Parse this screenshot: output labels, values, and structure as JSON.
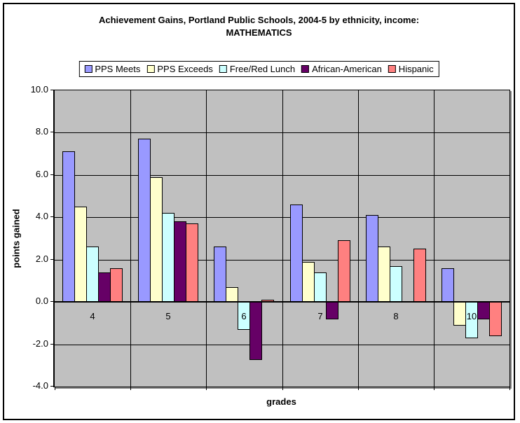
{
  "title": {
    "line1": "Achievement Gains, Portland Public Schools, 2004-5 by ethnicity, income:",
    "line2": "MATHEMATICS"
  },
  "chart_data": {
    "type": "bar",
    "title": "Achievement Gains, Portland Public Schools, 2004-5 by ethnicity, income: MATHEMATICS",
    "xlabel": "grades",
    "ylabel": "points gained",
    "ylim": [
      -4.0,
      10.0
    ],
    "ytick_values": [
      10,
      8,
      6,
      4,
      2,
      0,
      -2,
      -4
    ],
    "ytick_labels": [
      "10.0",
      "8.0",
      "6.0",
      "4.0",
      "2.0",
      "0.0",
      "-2.0",
      "-4.0"
    ],
    "grid": true,
    "plot_background": "#C0C0C0",
    "gridline_color": "#000000",
    "legend_position": "top-center",
    "categories": [
      "4",
      "5",
      "6",
      "7",
      "8",
      "10"
    ],
    "series": [
      {
        "name": "PPS Meets",
        "color": "#9999FF",
        "values": [
          7.1,
          7.7,
          2.6,
          4.6,
          4.1,
          1.6
        ]
      },
      {
        "name": "PPS Exceeds",
        "color": "#FFFFCC",
        "values": [
          4.5,
          5.9,
          0.7,
          1.9,
          2.6,
          -1.1
        ]
      },
      {
        "name": "Free/Red Lunch",
        "color": "#CCFFFF",
        "values": [
          2.6,
          4.2,
          -1.3,
          1.4,
          1.7,
          -1.7
        ]
      },
      {
        "name": "African-American",
        "color": "#660066",
        "values": [
          1.4,
          3.8,
          -2.7,
          -0.8,
          0.0,
          -0.8
        ]
      },
      {
        "name": "Hispanic",
        "color": "#FF8080",
        "values": [
          1.6,
          3.7,
          0.1,
          2.9,
          2.5,
          -1.6
        ]
      }
    ]
  }
}
